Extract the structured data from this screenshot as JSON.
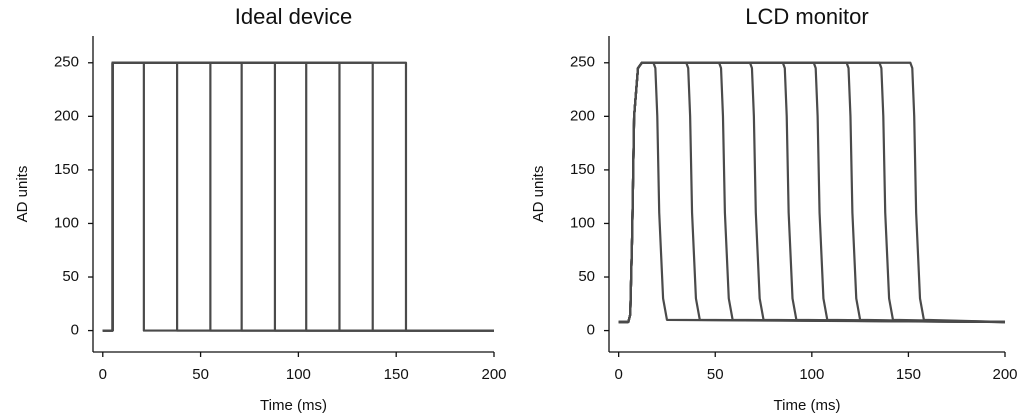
{
  "chart_data": [
    {
      "type": "line",
      "title": "Ideal device",
      "x_label": "Time (ms)",
      "y_label": "AD units",
      "xlim": [
        -5,
        200
      ],
      "ylim": [
        -20,
        275
      ],
      "xticks": [
        0,
        50,
        100,
        150,
        200
      ],
      "yticks": [
        0,
        50,
        100,
        150,
        200,
        250
      ],
      "series": [
        {
          "color": "#4a4a4a",
          "x": [
            0,
            5,
            5,
            21,
            21,
            200
          ],
          "values": [
            0,
            0,
            250,
            250,
            0,
            0
          ]
        },
        {
          "color": "#4a4a4a",
          "x": [
            0,
            5,
            5,
            38,
            38,
            200
          ],
          "values": [
            0,
            0,
            250,
            250,
            0,
            0
          ]
        },
        {
          "color": "#4a4a4a",
          "x": [
            0,
            5,
            5,
            55,
            55,
            200
          ],
          "values": [
            0,
            0,
            250,
            250,
            0,
            0
          ]
        },
        {
          "color": "#4a4a4a",
          "x": [
            0,
            5,
            5,
            71,
            71,
            200
          ],
          "values": [
            0,
            0,
            250,
            250,
            0,
            0
          ]
        },
        {
          "color": "#4a4a4a",
          "x": [
            0,
            5,
            5,
            88,
            88,
            200
          ],
          "values": [
            0,
            0,
            250,
            250,
            0,
            0
          ]
        },
        {
          "color": "#4a4a4a",
          "x": [
            0,
            5,
            5,
            104,
            104,
            200
          ],
          "values": [
            0,
            0,
            250,
            250,
            0,
            0
          ]
        },
        {
          "color": "#4a4a4a",
          "x": [
            0,
            5,
            5,
            121,
            121,
            200
          ],
          "values": [
            0,
            0,
            250,
            250,
            0,
            0
          ]
        },
        {
          "color": "#4a4a4a",
          "x": [
            0,
            5,
            5,
            138,
            138,
            200
          ],
          "values": [
            0,
            0,
            250,
            250,
            0,
            0
          ]
        },
        {
          "color": "#4a4a4a",
          "x": [
            0,
            5,
            5,
            155,
            155,
            200
          ],
          "values": [
            0,
            0,
            250,
            250,
            0,
            0
          ]
        }
      ]
    },
    {
      "type": "line",
      "title": "LCD monitor",
      "x_label": "Time (ms)",
      "y_label": "AD units",
      "xlim": [
        -5,
        200
      ],
      "ylim": [
        -20,
        275
      ],
      "xticks": [
        0,
        50,
        100,
        150,
        200
      ],
      "yticks": [
        0,
        50,
        100,
        150,
        200,
        250
      ],
      "series": [
        {
          "color": "#4a4a4a",
          "x": [
            0,
            5,
            6,
            7,
            8,
            10,
            12,
            18,
            19,
            20,
            21,
            23,
            25,
            200
          ],
          "values": [
            8,
            8,
            15,
            90,
            200,
            245,
            250,
            250,
            245,
            200,
            110,
            30,
            10,
            8
          ]
        },
        {
          "color": "#4a4a4a",
          "x": [
            0,
            5,
            6,
            7,
            8,
            10,
            12,
            35,
            36,
            37,
            38,
            40,
            42,
            200
          ],
          "values": [
            8,
            8,
            15,
            90,
            200,
            245,
            250,
            250,
            245,
            200,
            110,
            30,
            10,
            8
          ]
        },
        {
          "color": "#4a4a4a",
          "x": [
            0,
            5,
            6,
            7,
            8,
            10,
            12,
            52,
            53,
            54,
            55,
            57,
            59,
            200
          ],
          "values": [
            8,
            8,
            15,
            90,
            200,
            245,
            250,
            250,
            245,
            200,
            110,
            30,
            10,
            8
          ]
        },
        {
          "color": "#4a4a4a",
          "x": [
            0,
            5,
            6,
            7,
            8,
            10,
            12,
            68,
            69,
            70,
            71,
            73,
            75,
            200
          ],
          "values": [
            8,
            8,
            15,
            90,
            200,
            245,
            250,
            250,
            245,
            200,
            110,
            30,
            10,
            8
          ]
        },
        {
          "color": "#4a4a4a",
          "x": [
            0,
            5,
            6,
            7,
            8,
            10,
            12,
            85,
            86,
            87,
            88,
            90,
            92,
            200
          ],
          "values": [
            8,
            8,
            15,
            90,
            200,
            245,
            250,
            250,
            245,
            200,
            110,
            30,
            10,
            8
          ]
        },
        {
          "color": "#4a4a4a",
          "x": [
            0,
            5,
            6,
            7,
            8,
            10,
            12,
            101,
            102,
            103,
            104,
            106,
            108,
            200
          ],
          "values": [
            8,
            8,
            15,
            90,
            200,
            245,
            250,
            250,
            245,
            200,
            110,
            30,
            10,
            8
          ]
        },
        {
          "color": "#4a4a4a",
          "x": [
            0,
            5,
            6,
            7,
            8,
            10,
            12,
            118,
            119,
            120,
            121,
            123,
            125,
            200
          ],
          "values": [
            8,
            8,
            15,
            90,
            200,
            245,
            250,
            250,
            245,
            200,
            110,
            30,
            10,
            8
          ]
        },
        {
          "color": "#4a4a4a",
          "x": [
            0,
            5,
            6,
            7,
            8,
            10,
            12,
            135,
            136,
            137,
            138,
            140,
            142,
            200
          ],
          "values": [
            8,
            8,
            15,
            90,
            200,
            245,
            250,
            250,
            245,
            200,
            110,
            30,
            10,
            8
          ]
        },
        {
          "color": "#4a4a4a",
          "x": [
            0,
            5,
            6,
            7,
            8,
            10,
            12,
            151,
            152,
            153,
            154,
            156,
            158,
            200
          ],
          "values": [
            8,
            8,
            15,
            90,
            200,
            245,
            250,
            250,
            245,
            200,
            110,
            30,
            10,
            8
          ]
        }
      ]
    }
  ]
}
